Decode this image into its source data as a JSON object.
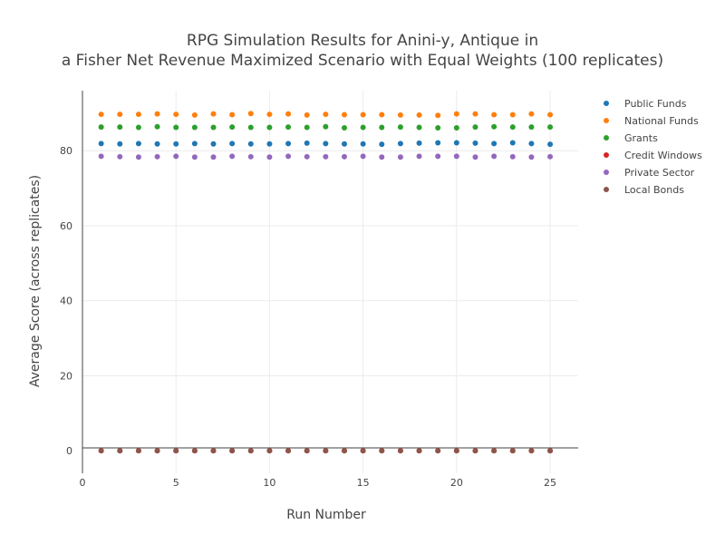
{
  "chart_data": {
    "type": "scatter",
    "title_lines": [
      "RPG Simulation Results for Anini-y, Antique in",
      "a Fisher Net Revenue Maximized Scenario with Equal Weights (100 replicates)"
    ],
    "xlabel": "Run Number",
    "ylabel": "Average Score (across replicates)",
    "xlim": [
      0,
      26.5
    ],
    "ylim": [
      -6,
      96
    ],
    "xticks": [
      0,
      5,
      10,
      15,
      20,
      25
    ],
    "yticks": [
      0,
      20,
      40,
      60,
      80
    ],
    "grid": true,
    "legend_position": "top-right",
    "x": [
      1,
      2,
      3,
      4,
      5,
      6,
      7,
      8,
      9,
      10,
      11,
      12,
      13,
      14,
      15,
      16,
      17,
      18,
      19,
      20,
      21,
      22,
      23,
      24,
      25
    ],
    "series": [
      {
        "name": "Public Funds",
        "color": "#1f77b4",
        "values": [
          81.9,
          81.8,
          81.9,
          81.8,
          81.8,
          81.9,
          81.8,
          81.9,
          81.8,
          81.8,
          81.9,
          82.0,
          81.9,
          81.8,
          81.8,
          81.7,
          81.9,
          82.0,
          82.1,
          82.1,
          82.0,
          81.9,
          82.1,
          81.9,
          81.7
        ]
      },
      {
        "name": "National Funds",
        "color": "#ff7f0e",
        "values": [
          89.7,
          89.7,
          89.7,
          89.8,
          89.7,
          89.5,
          89.8,
          89.6,
          89.9,
          89.7,
          89.8,
          89.5,
          89.7,
          89.6,
          89.6,
          89.6,
          89.5,
          89.5,
          89.4,
          89.8,
          89.8,
          89.6,
          89.6,
          89.8,
          89.6
        ]
      },
      {
        "name": "Grants",
        "color": "#2ca02c",
        "values": [
          86.3,
          86.3,
          86.2,
          86.4,
          86.2,
          86.2,
          86.2,
          86.3,
          86.2,
          86.2,
          86.3,
          86.2,
          86.4,
          86.1,
          86.2,
          86.2,
          86.3,
          86.2,
          86.1,
          86.1,
          86.3,
          86.4,
          86.3,
          86.3,
          86.3
        ]
      },
      {
        "name": "Credit Windows",
        "color": "#d62728",
        "values": [
          0,
          0,
          0,
          0,
          0,
          0,
          0,
          0,
          0,
          0,
          0,
          0,
          0,
          0,
          0,
          0,
          0,
          0,
          0,
          0,
          0,
          0,
          0,
          0,
          0
        ]
      },
      {
        "name": "Private Sector",
        "color": "#9467bd",
        "values": [
          78.5,
          78.4,
          78.3,
          78.4,
          78.5,
          78.3,
          78.3,
          78.5,
          78.4,
          78.3,
          78.5,
          78.4,
          78.4,
          78.4,
          78.5,
          78.3,
          78.3,
          78.5,
          78.5,
          78.5,
          78.3,
          78.5,
          78.4,
          78.3,
          78.4
        ]
      },
      {
        "name": "Local Bonds",
        "color": "#8c564b",
        "values": [
          0,
          0,
          0,
          0,
          0,
          0,
          0,
          0,
          0,
          0,
          0,
          0,
          0,
          0,
          0,
          0,
          0,
          0,
          0,
          0,
          0,
          0,
          0,
          0,
          0
        ]
      }
    ]
  }
}
